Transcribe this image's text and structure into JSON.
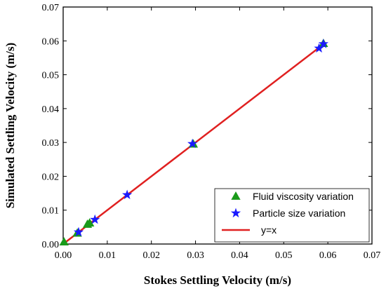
{
  "chart_data": {
    "type": "scatter",
    "title": "",
    "xlabel": "Stokes Settling Velocity (m/s)",
    "ylabel": "Simulated Settling Velocity (m/s)",
    "xlim": [
      0,
      0.07
    ],
    "ylim": [
      0,
      0.07
    ],
    "xticks": [
      "0.00",
      "0.01",
      "0.02",
      "0.03",
      "0.04",
      "0.05",
      "0.06",
      "0.07"
    ],
    "yticks": [
      "0.00",
      "0.01",
      "0.02",
      "0.03",
      "0.04",
      "0.05",
      "0.06",
      "0.07"
    ],
    "grid": false,
    "legend_position": "bottom-right",
    "series": [
      {
        "name": "Fluid viscosity variation",
        "marker": "triangle",
        "color": "#1a9a1a",
        "points": [
          {
            "x": 0.0002,
            "y": 0.0006
          },
          {
            "x": 0.0032,
            "y": 0.0032
          },
          {
            "x": 0.0055,
            "y": 0.0058
          },
          {
            "x": 0.006,
            "y": 0.0062
          },
          {
            "x": 0.0295,
            "y": 0.0295
          },
          {
            "x": 0.059,
            "y": 0.0592
          }
        ]
      },
      {
        "name": "Particle size variation",
        "marker": "star",
        "color": "#1a1aff",
        "points": [
          {
            "x": 0.0035,
            "y": 0.0035
          },
          {
            "x": 0.0072,
            "y": 0.0072
          },
          {
            "x": 0.0145,
            "y": 0.0145
          },
          {
            "x": 0.0293,
            "y": 0.0296
          },
          {
            "x": 0.058,
            "y": 0.0578
          },
          {
            "x": 0.059,
            "y": 0.0591
          }
        ]
      },
      {
        "name": "y=x",
        "marker": "line",
        "color": "#e02020",
        "points": [
          {
            "x": 0,
            "y": 0
          },
          {
            "x": 0.059,
            "y": 0.059
          }
        ]
      }
    ]
  }
}
